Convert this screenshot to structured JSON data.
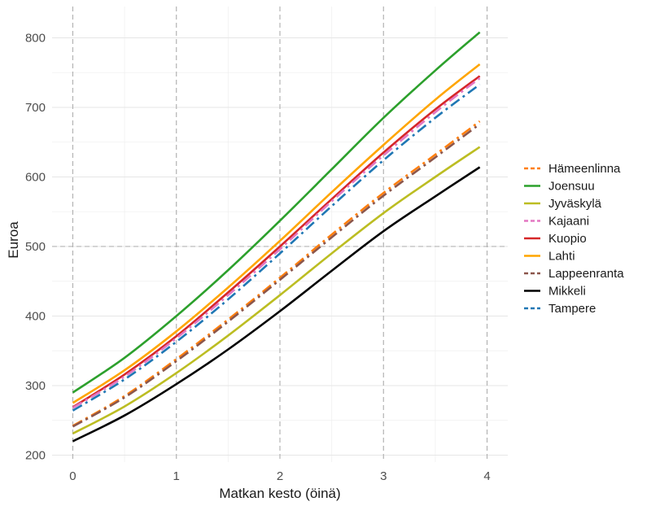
{
  "chart_data": {
    "type": "line",
    "title": "",
    "xlabel": "Matkan kesto (öinä)",
    "ylabel": "Euroa",
    "xlim": [
      -0.2,
      4.2
    ],
    "ylim": [
      190,
      845
    ],
    "x_ticks": [
      0,
      1,
      2,
      3,
      4
    ],
    "x_tick_labels": [
      "0",
      "1",
      "2",
      "3",
      "4"
    ],
    "y_ticks": [
      200,
      300,
      400,
      500,
      600,
      700,
      800
    ],
    "y_tick_labels": [
      "200",
      "300",
      "400",
      "500",
      "600",
      "700",
      "800"
    ],
    "reference_lines": {
      "x": [
        0,
        1,
        2,
        3,
        4
      ],
      "y": [
        500
      ]
    },
    "grid": true,
    "legend_position": "right",
    "x": [
      0,
      0.5,
      1,
      1.5,
      2,
      2.5,
      3,
      3.5,
      3.93
    ],
    "series": [
      {
        "name": "Hämeenlinna",
        "color": "#ff7f0e",
        "dash": "dashed",
        "values": [
          242,
          285,
          338,
          395,
          455,
          517,
          577,
          632,
          680
        ]
      },
      {
        "name": "Joensuu",
        "color": "#2ca02c",
        "dash": "solid",
        "values": [
          290,
          340,
          400,
          466,
          537,
          611,
          685,
          753,
          808
        ]
      },
      {
        "name": "Jyväskylä",
        "color": "#bcbd22",
        "dash": "solid",
        "values": [
          231,
          270,
          318,
          372,
          430,
          490,
          548,
          600,
          643
        ]
      },
      {
        "name": "Kajaani",
        "color": "#e377c2",
        "dash": "dashed",
        "values": [
          268,
          313,
          368,
          430,
          496,
          565,
          631,
          693,
          742
        ]
      },
      {
        "name": "Kuopio",
        "color": "#d62728",
        "dash": "solid",
        "values": [
          269,
          316,
          371,
          434,
          500,
          568,
          635,
          697,
          745
        ]
      },
      {
        "name": "Lahti",
        "color": "#ffa500",
        "dash": "solid",
        "values": [
          275,
          322,
          378,
          441,
          508,
          578,
          646,
          711,
          762
        ]
      },
      {
        "name": "Lappeenranta",
        "color": "#8c564b",
        "dash": "dashed",
        "values": [
          241,
          283,
          335,
          392,
          452,
          513,
          573,
          628,
          676
        ]
      },
      {
        "name": "Mikkeli",
        "color": "#000000",
        "dash": "solid",
        "values": [
          220,
          257,
          302,
          352,
          407,
          465,
          522,
          572,
          614
        ]
      },
      {
        "name": "Tampere",
        "color": "#1f77b4",
        "dash": "dashed",
        "values": [
          264,
          309,
          363,
          424,
          490,
          558,
          624,
          685,
          733
        ]
      }
    ]
  }
}
